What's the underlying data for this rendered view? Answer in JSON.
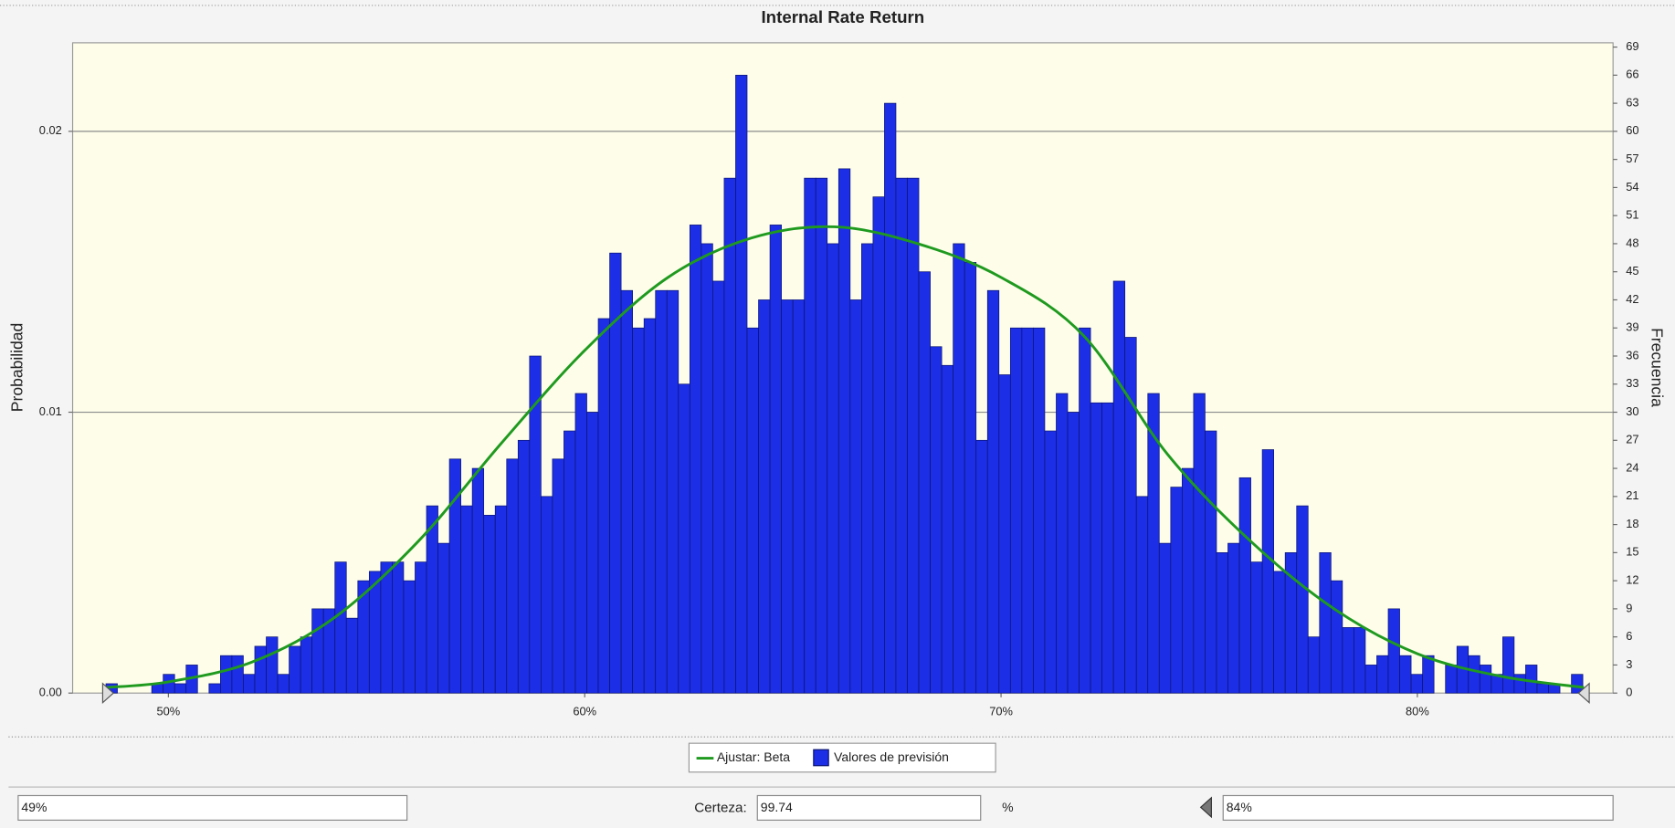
{
  "chart_data": {
    "type": "histogram",
    "title": "Internal Rate Return",
    "ylabel": "Probabilidad",
    "y2label": "Frecuencia",
    "xlim": [
      47.7,
      84.7
    ],
    "xticks": [
      {
        "value": 50,
        "label": "50%"
      },
      {
        "value": 60,
        "label": "60%"
      },
      {
        "value": 70,
        "label": "70%"
      },
      {
        "value": 80,
        "label": "80%"
      }
    ],
    "ylim": [
      0,
      0.023
    ],
    "yticks": [
      {
        "value": 0,
        "label": "0.00"
      },
      0.01,
      0.02
    ],
    "y2lim": [
      0,
      69
    ],
    "y2ticks": [
      0,
      3,
      6,
      9,
      12,
      15,
      18,
      21,
      24,
      27,
      30,
      33,
      36,
      39,
      42,
      45,
      48,
      51,
      54,
      57,
      60,
      63,
      66,
      69
    ],
    "grid": true,
    "legend": "bottom",
    "bins": [
      48.5,
      48.775,
      49.05,
      49.325,
      49.6,
      49.875,
      50.15,
      50.425,
      50.7,
      50.975,
      51.25,
      51.525,
      51.8,
      52.075,
      52.35,
      52.625,
      52.9,
      53.175,
      53.45,
      53.725,
      54.0,
      54.275,
      54.55,
      54.825,
      55.1,
      55.375,
      55.65,
      55.925,
      56.2,
      56.475,
      56.75,
      57.025,
      57.3,
      57.575,
      57.85,
      58.125,
      58.4,
      58.675,
      58.95,
      59.225,
      59.5,
      59.775,
      60.05,
      60.325,
      60.6,
      60.875,
      61.15,
      61.425,
      61.7,
      61.975,
      62.25,
      62.525,
      62.8,
      63.075,
      63.35,
      63.625,
      63.9,
      64.175,
      64.45,
      64.725,
      65.0,
      65.275,
      65.55,
      65.825,
      66.1,
      66.375,
      66.65,
      66.925,
      67.2,
      67.475,
      67.75,
      68.025,
      68.3,
      68.575,
      68.85,
      69.125,
      69.4,
      69.675,
      69.95,
      70.225,
      70.5,
      70.775,
      71.05,
      71.325,
      71.6,
      71.875,
      72.15,
      72.425,
      72.7,
      72.975,
      73.25,
      73.525,
      73.8,
      74.075,
      74.35,
      74.625,
      74.9,
      75.175,
      75.45,
      75.725,
      76.0,
      76.275,
      76.55,
      76.825,
      77.1,
      77.375,
      77.65,
      77.925,
      78.2,
      78.475,
      78.75,
      79.025,
      79.3,
      79.575,
      79.85,
      80.125,
      80.4,
      80.675,
      80.95,
      81.225,
      81.5,
      81.775,
      82.05,
      82.325,
      82.6,
      82.875,
      83.15,
      83.425,
      83.7,
      83.975
    ],
    "series": [
      {
        "name": "Valores de previsión",
        "color": "#1c2ee6",
        "axis": "y2",
        "values": [
          1,
          0,
          0,
          0,
          1,
          2,
          1,
          3,
          0,
          1,
          4,
          4,
          2,
          5,
          6,
          2,
          5,
          6,
          9,
          9,
          14,
          8,
          12,
          13,
          14,
          14,
          12,
          14,
          20,
          16,
          25,
          20,
          24,
          19,
          20,
          25,
          27,
          36,
          21,
          25,
          28,
          32,
          30,
          40,
          47,
          43,
          39,
          40,
          43,
          43,
          33,
          50,
          48,
          44,
          55,
          66,
          39,
          42,
          50,
          42,
          42,
          55,
          55,
          48,
          56,
          42,
          48,
          53,
          63,
          55,
          55,
          45,
          37,
          35,
          48,
          46,
          27,
          43,
          34,
          39,
          39,
          39,
          28,
          32,
          30,
          39,
          31,
          31,
          44,
          38,
          21,
          32,
          16,
          22,
          24,
          32,
          28,
          15,
          16,
          23,
          14,
          26,
          13,
          15,
          20,
          6,
          15,
          12,
          7,
          7,
          3,
          4,
          9,
          4,
          2,
          4,
          0,
          3,
          5,
          4,
          3,
          2,
          6,
          2,
          3,
          1,
          1,
          0,
          2
        ]
      },
      {
        "name": "Ajustar: Beta",
        "color": "#1f9a1f",
        "type": "line",
        "x": [
          48.5,
          50,
          52,
          54,
          56,
          58,
          60,
          62,
          64,
          66,
          68,
          70,
          72,
          74,
          76,
          78,
          80,
          82,
          84
        ],
        "values": [
          0.0002,
          0.0004,
          0.0011,
          0.0027,
          0.0054,
          0.0089,
          0.0122,
          0.0148,
          0.0162,
          0.0166,
          0.016,
          0.0148,
          0.0127,
          0.0085,
          0.0054,
          0.003,
          0.0014,
          0.0006,
          0.0002
        ]
      }
    ],
    "certainty": {
      "lower": {
        "value": 48.55,
        "label": "49%"
      },
      "label": "Certeza:",
      "value": 99.74,
      "unit": "%",
      "upper": {
        "value": 84,
        "label": "84%"
      }
    }
  }
}
